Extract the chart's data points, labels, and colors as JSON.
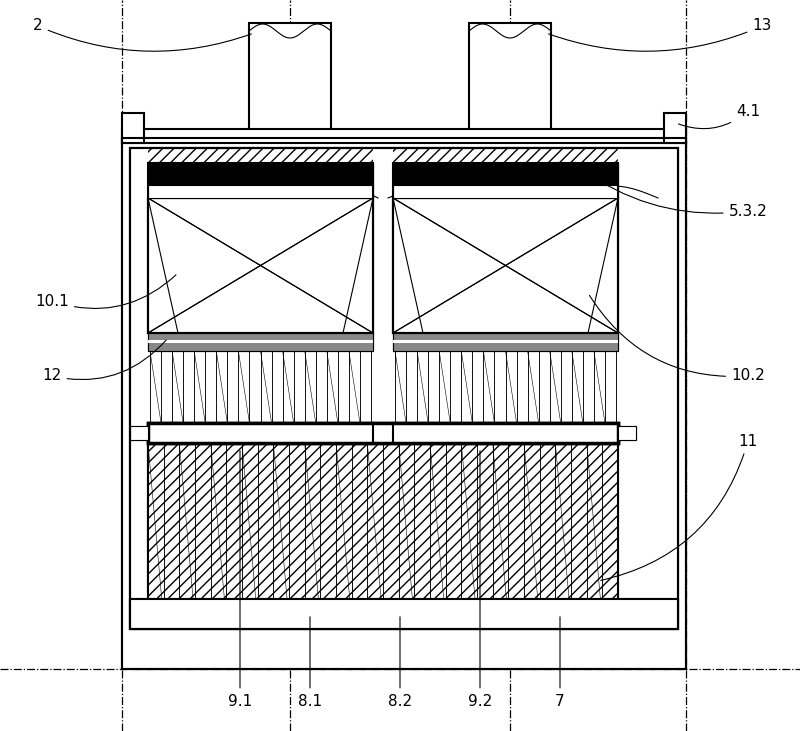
{
  "fig_width": 8.0,
  "fig_height": 7.31,
  "dpi": 100,
  "bg_color": "#ffffff",
  "label_fontsize": 11,
  "dashed_lw": 0.9,
  "thin_lw": 0.8,
  "med_lw": 1.5,
  "thick_lw": 2.5
}
